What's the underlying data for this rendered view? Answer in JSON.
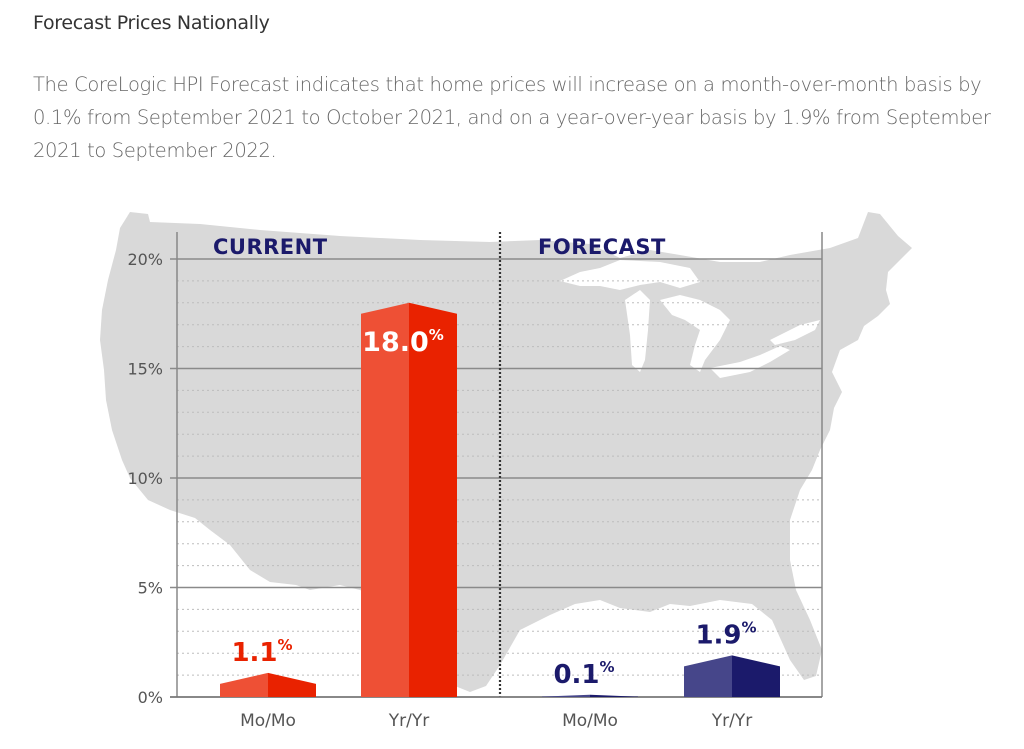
{
  "header": {
    "title": "Forecast Prices Nationally",
    "description": "The CoreLogic HPI Forecast indicates that home prices will increase on a month-over-month basis by 0.1% from September 2021 to October 2021, and on a year-over-year basis by 1.9% from September 2021 to September 2022."
  },
  "colors": {
    "current_light": "#ee5035",
    "current_dark": "#e92200",
    "forecast_light": "#46468a",
    "forecast_dark": "#1b1a6b",
    "section_label": "#1b1a6b",
    "map": "#d9d9d9",
    "grid": "#888888"
  },
  "chart_data": {
    "type": "bar",
    "title": "",
    "xlabel": "",
    "ylabel": "",
    "ylim": [
      0,
      20
    ],
    "yticks": [
      0,
      5,
      10,
      15,
      20
    ],
    "ytick_labels": [
      "0%",
      "5%",
      "10%",
      "15%",
      "20%"
    ],
    "minor_grid_step": 1,
    "grid": true,
    "groups": [
      {
        "name": "CURRENT",
        "categories": [
          "Mo/Mo",
          "Yr/Yr"
        ],
        "values": [
          1.1,
          18.0
        ],
        "value_labels": [
          "1.1",
          "18.0"
        ],
        "color": "red"
      },
      {
        "name": "FORECAST",
        "categories": [
          "Mo/Mo",
          "Yr/Yr"
        ],
        "values": [
          0.1,
          1.9
        ],
        "value_labels": [
          "0.1",
          "1.9"
        ],
        "color": "navy"
      }
    ],
    "value_suffix": "%",
    "background": "US map silhouette"
  }
}
